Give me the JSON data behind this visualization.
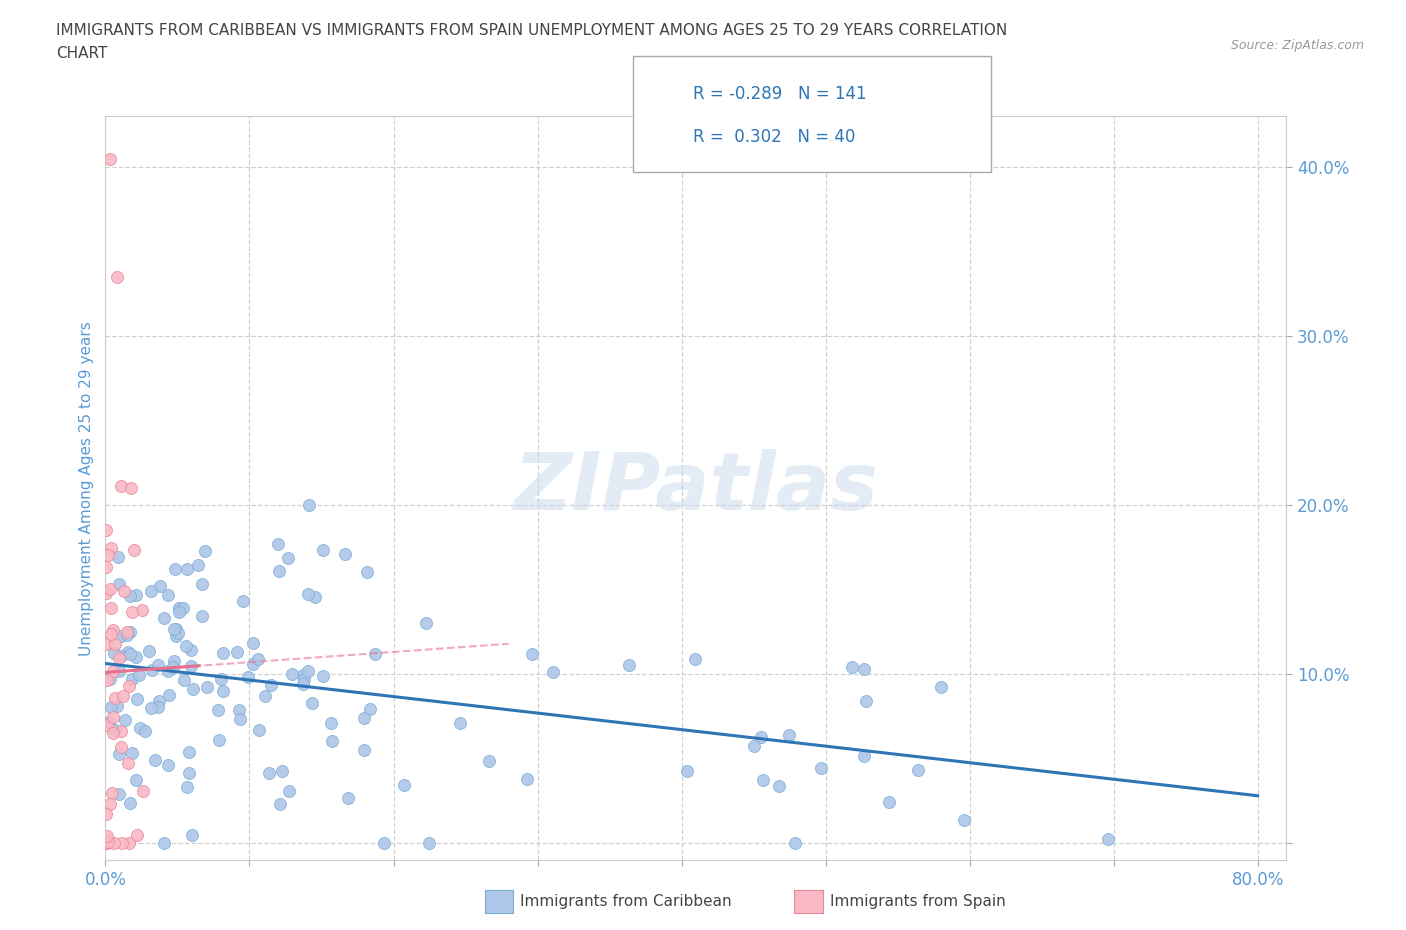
{
  "title_line1": "IMMIGRANTS FROM CARIBBEAN VS IMMIGRANTS FROM SPAIN UNEMPLOYMENT AMONG AGES 25 TO 29 YEARS CORRELATION",
  "title_line2": "CHART",
  "source_text": "Source: ZipAtlas.com",
  "ylabel": "Unemployment Among Ages 25 to 29 years",
  "xlim": [
    0.0,
    0.82
  ],
  "ylim": [
    -0.01,
    0.43
  ],
  "xticks": [
    0.0,
    0.1,
    0.2,
    0.3,
    0.4,
    0.5,
    0.6,
    0.7,
    0.8
  ],
  "yticks": [
    0.0,
    0.1,
    0.2,
    0.3,
    0.4
  ],
  "caribbean_color": "#aec6e8",
  "caribbean_edge_color": "#7aafd4",
  "spain_color": "#f9b8c5",
  "spain_edge_color": "#e8889a",
  "caribbean_line_color": "#2e75b6",
  "spain_line_color": "#e87090",
  "R_caribbean": -0.289,
  "N_caribbean": 141,
  "R_spain": 0.302,
  "N_spain": 40,
  "watermark": "ZIPatlas",
  "background_color": "#ffffff",
  "grid_color": "#d0d0d0",
  "title_color": "#444444",
  "tick_color": "#5b9bd5",
  "ylabel_color": "#5b9bd5",
  "source_color": "#999999"
}
